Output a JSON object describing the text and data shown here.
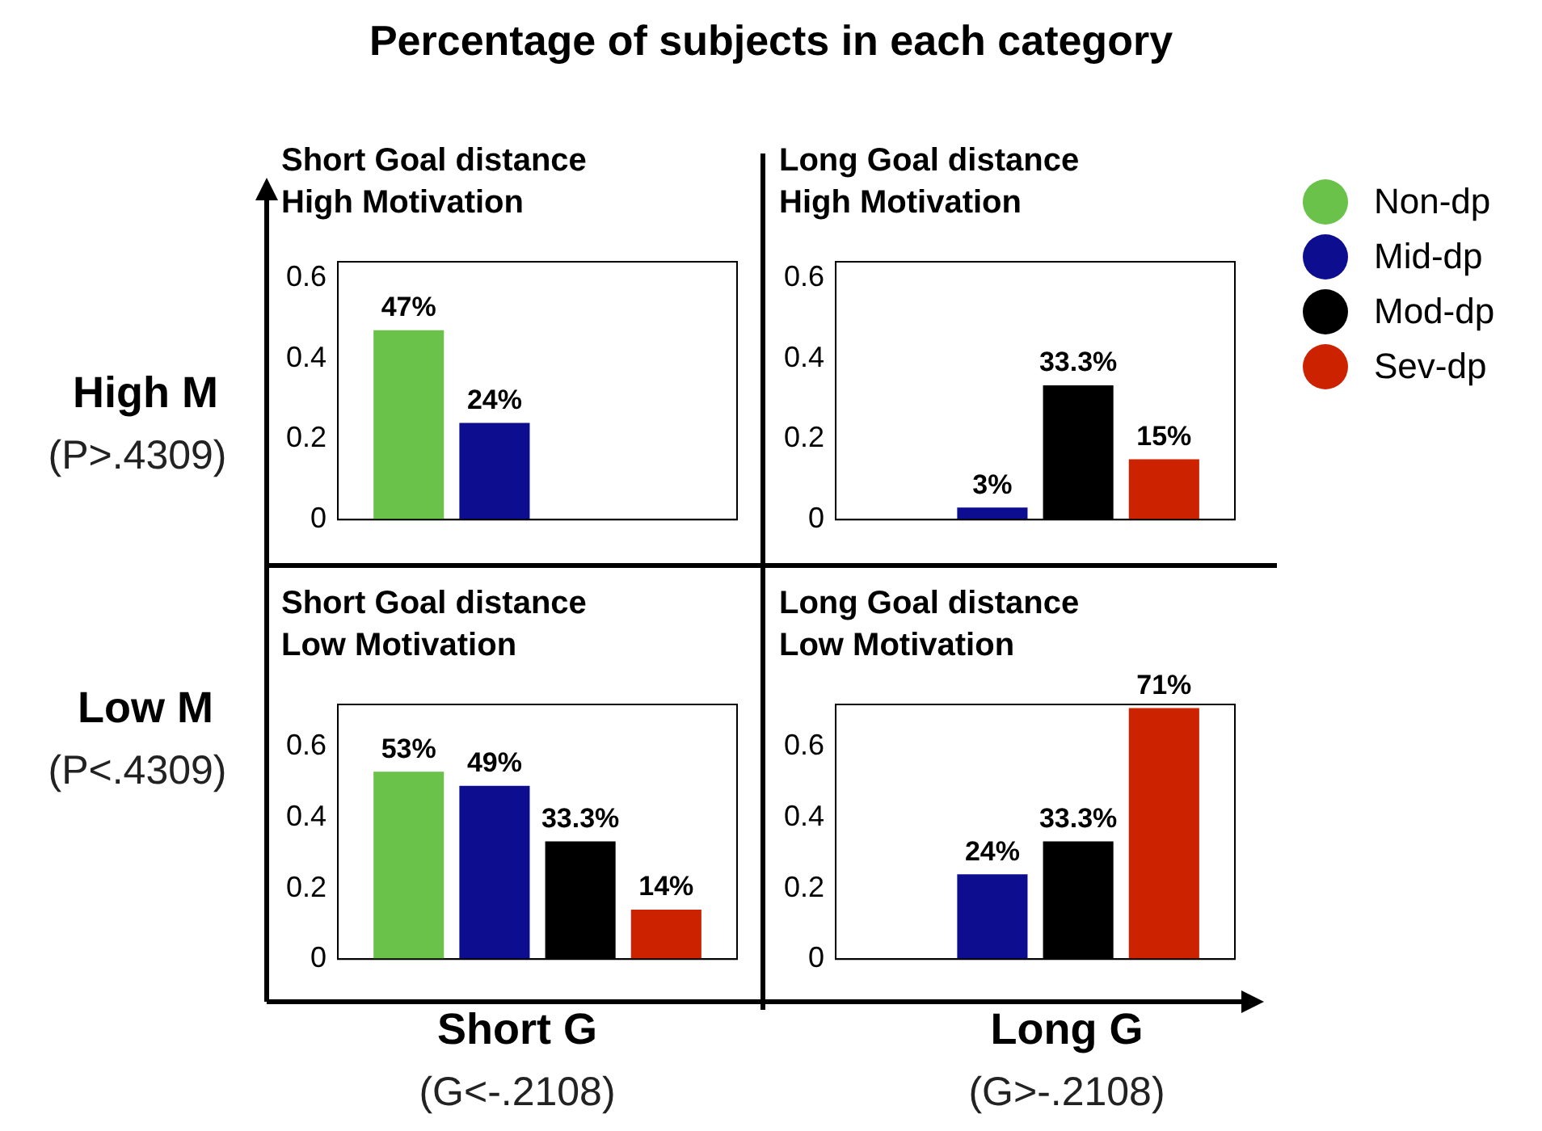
{
  "chart_data": [
    {
      "type": "other",
      "title": "Percentage of subjects in each category",
      "annotations": [
        "High M",
        "(P>.4309)",
        "Low M",
        "(P<.4309)",
        "Short G",
        "(G<-.2108)",
        "Long G",
        "(G>-.2108)"
      ]
    },
    {
      "type": "bar",
      "title": "Short Goal distance",
      "subtitle": "High Motivation",
      "categories": [
        null
      ],
      "ylim": [
        0,
        0.64
      ],
      "yticks": [
        0,
        0.2,
        0.4,
        0.6
      ],
      "series": [
        {
          "color": "#6ac24a",
          "values": [
            0.47
          ],
          "value_labels": [
            "47%"
          ]
        },
        {
          "color": "#0d0d8f",
          "values": [
            0.24
          ],
          "value_labels": [
            "24%"
          ]
        },
        {
          "color": "#000000",
          "values": [
            null
          ],
          "value_labels": [
            null
          ]
        },
        {
          "color": "#cc2200",
          "values": [
            null
          ],
          "value_labels": [
            null
          ]
        }
      ]
    },
    {
      "type": "bar",
      "title": "Long Goal distance",
      "subtitle": "High Motivation",
      "categories": [
        null
      ],
      "ylim": [
        0,
        0.64
      ],
      "yticks": [
        0,
        0.2,
        0.4,
        0.6
      ],
      "legend": "right",
      "series": [
        {
          "name": "Non-dp",
          "color": "#6ac24a",
          "values": [
            null
          ],
          "value_labels": [
            null
          ]
        },
        {
          "name": "Mid-dp",
          "color": "#0d0d8f",
          "values": [
            0.03
          ],
          "value_labels": [
            "3%"
          ]
        },
        {
          "name": "Mod-dp",
          "color": "#000000",
          "values": [
            0.333
          ],
          "value_labels": [
            "33.3%"
          ]
        },
        {
          "name": "Sev-dp",
          "color": "#cc2200",
          "values": [
            0.15
          ],
          "value_labels": [
            "15%"
          ]
        }
      ]
    },
    {
      "type": "bar",
      "title": "Short Goal distance",
      "subtitle": "Low Motivation",
      "categories": [
        null
      ],
      "ylim": [
        0,
        0.72
      ],
      "yticks": [
        0,
        0.2,
        0.4,
        0.6
      ],
      "series": [
        {
          "color": "#6ac24a",
          "values": [
            0.53
          ],
          "value_labels": [
            "53%"
          ]
        },
        {
          "color": "#0d0d8f",
          "values": [
            0.49
          ],
          "value_labels": [
            "49%"
          ]
        },
        {
          "color": "#000000",
          "values": [
            0.333
          ],
          "value_labels": [
            "33.3%"
          ]
        },
        {
          "color": "#cc2200",
          "values": [
            0.14
          ],
          "value_labels": [
            "14%"
          ]
        }
      ]
    },
    {
      "type": "bar",
      "title": "Long Goal distance",
      "subtitle": "Low Motivation",
      "categories": [
        null
      ],
      "ylim": [
        0,
        0.72
      ],
      "yticks": [
        0,
        0.2,
        0.4,
        0.6
      ],
      "series": [
        {
          "color": "#6ac24a",
          "values": [
            null
          ],
          "value_labels": [
            null
          ]
        },
        {
          "color": "#0d0d8f",
          "values": [
            0.24
          ],
          "value_labels": [
            "24%"
          ]
        },
        {
          "color": "#000000",
          "values": [
            0.333
          ],
          "value_labels": [
            "33.3%"
          ]
        },
        {
          "color": "#cc2200",
          "values": [
            0.71
          ],
          "value_labels": [
            "71%"
          ]
        }
      ]
    }
  ]
}
